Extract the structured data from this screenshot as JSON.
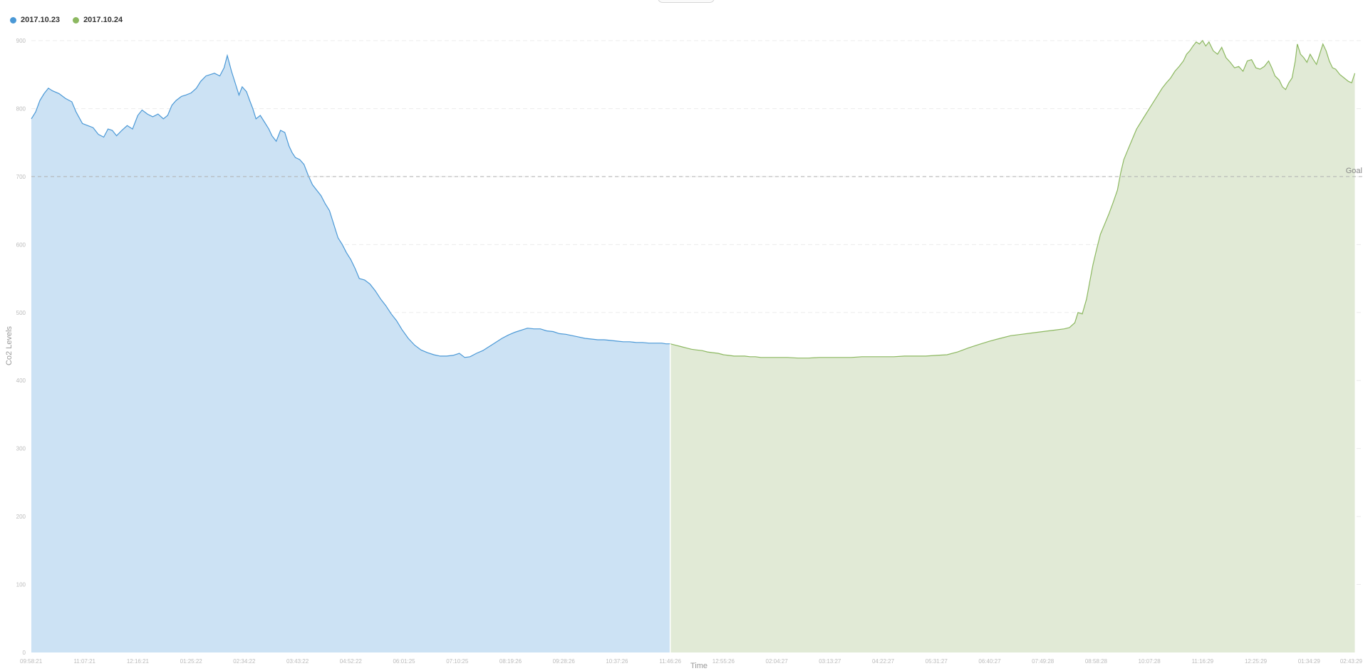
{
  "chart_data": {
    "type": "area",
    "title": "",
    "xlabel": "Time",
    "ylabel": "Co2 Levels",
    "ylim": [
      0,
      900
    ],
    "yticks": [
      0,
      100,
      200,
      300,
      400,
      500,
      600,
      700,
      800,
      900
    ],
    "xtick_labels": [
      "09:58:21",
      "11:07:21",
      "12:16:21",
      "01:25:22",
      "02:34:22",
      "03:43:22",
      "04:52:22",
      "06:01:25",
      "07:10:25",
      "08:19:26",
      "09:28:26",
      "10:37:26",
      "11:46:26",
      "12:55:26",
      "02:04:27",
      "03:13:27",
      "04:22:27",
      "05:31:27",
      "06:40:27",
      "07:49:28",
      "08:58:28",
      "10:07:28",
      "11:16:29",
      "12:25:29",
      "01:34:29",
      "02:43:29"
    ],
    "grid": true,
    "legend_position": "top-left",
    "goal": {
      "label": "Goal",
      "value": 700
    },
    "series": [
      {
        "name": "2017.10.23",
        "color": "#4a98d6",
        "fill": "#cce2f4",
        "x_start": 0,
        "x_end": 12,
        "points": [
          [
            0.0,
            785
          ],
          [
            0.08,
            795
          ],
          [
            0.16,
            812
          ],
          [
            0.24,
            822
          ],
          [
            0.32,
            830
          ],
          [
            0.4,
            826
          ],
          [
            0.52,
            822
          ],
          [
            0.64,
            815
          ],
          [
            0.76,
            810
          ],
          [
            0.84,
            795
          ],
          [
            0.96,
            778
          ],
          [
            1.06,
            775
          ],
          [
            1.16,
            772
          ],
          [
            1.26,
            762
          ],
          [
            1.36,
            758
          ],
          [
            1.44,
            770
          ],
          [
            1.52,
            768
          ],
          [
            1.6,
            760
          ],
          [
            1.7,
            768
          ],
          [
            1.8,
            775
          ],
          [
            1.9,
            770
          ],
          [
            2.0,
            790
          ],
          [
            2.08,
            798
          ],
          [
            2.18,
            792
          ],
          [
            2.28,
            788
          ],
          [
            2.38,
            792
          ],
          [
            2.48,
            785
          ],
          [
            2.56,
            790
          ],
          [
            2.64,
            805
          ],
          [
            2.72,
            812
          ],
          [
            2.82,
            818
          ],
          [
            2.9,
            820
          ],
          [
            3.0,
            823
          ],
          [
            3.1,
            830
          ],
          [
            3.18,
            840
          ],
          [
            3.28,
            848
          ],
          [
            3.36,
            850
          ],
          [
            3.44,
            852
          ],
          [
            3.54,
            848
          ],
          [
            3.62,
            860
          ],
          [
            3.68,
            878
          ],
          [
            3.76,
            855
          ],
          [
            3.84,
            835
          ],
          [
            3.9,
            820
          ],
          [
            3.96,
            832
          ],
          [
            4.04,
            825
          ],
          [
            4.1,
            812
          ],
          [
            4.16,
            800
          ],
          [
            4.22,
            785
          ],
          [
            4.3,
            790
          ],
          [
            4.38,
            780
          ],
          [
            4.46,
            770
          ],
          [
            4.52,
            760
          ],
          [
            4.6,
            752
          ],
          [
            4.68,
            768
          ],
          [
            4.76,
            765
          ],
          [
            4.84,
            745
          ],
          [
            4.9,
            735
          ],
          [
            4.96,
            728
          ],
          [
            5.04,
            725
          ],
          [
            5.12,
            718
          ],
          [
            5.2,
            702
          ],
          [
            5.28,
            688
          ],
          [
            5.36,
            680
          ],
          [
            5.44,
            672
          ],
          [
            5.52,
            660
          ],
          [
            5.6,
            650
          ],
          [
            5.68,
            630
          ],
          [
            5.76,
            610
          ],
          [
            5.84,
            600
          ],
          [
            5.92,
            588
          ],
          [
            6.0,
            578
          ],
          [
            6.08,
            565
          ],
          [
            6.16,
            550
          ],
          [
            6.26,
            548
          ],
          [
            6.36,
            542
          ],
          [
            6.46,
            532
          ],
          [
            6.56,
            520
          ],
          [
            6.66,
            510
          ],
          [
            6.76,
            498
          ],
          [
            6.86,
            488
          ],
          [
            6.96,
            475
          ],
          [
            7.08,
            462
          ],
          [
            7.2,
            452
          ],
          [
            7.32,
            445
          ],
          [
            7.44,
            441
          ],
          [
            7.56,
            438
          ],
          [
            7.68,
            436
          ],
          [
            7.8,
            436
          ],
          [
            7.92,
            437
          ],
          [
            8.04,
            440
          ],
          [
            8.14,
            434
          ],
          [
            8.24,
            435
          ],
          [
            8.36,
            440
          ],
          [
            8.48,
            444
          ],
          [
            8.6,
            450
          ],
          [
            8.72,
            456
          ],
          [
            8.84,
            462
          ],
          [
            8.96,
            467
          ],
          [
            9.08,
            471
          ],
          [
            9.2,
            474
          ],
          [
            9.32,
            477
          ],
          [
            9.44,
            476
          ],
          [
            9.56,
            476
          ],
          [
            9.68,
            473
          ],
          [
            9.8,
            472
          ],
          [
            9.92,
            469
          ],
          [
            10.04,
            468
          ],
          [
            10.16,
            466
          ],
          [
            10.28,
            464
          ],
          [
            10.4,
            462
          ],
          [
            10.52,
            461
          ],
          [
            10.64,
            460
          ],
          [
            10.76,
            460
          ],
          [
            10.88,
            459
          ],
          [
            11.0,
            458
          ],
          [
            11.12,
            457
          ],
          [
            11.24,
            457
          ],
          [
            11.36,
            456
          ],
          [
            11.48,
            456
          ],
          [
            11.6,
            455
          ],
          [
            11.72,
            455
          ],
          [
            11.84,
            455
          ],
          [
            11.92,
            454
          ],
          [
            12.0,
            454
          ]
        ]
      },
      {
        "name": "2017.10.24",
        "color": "#8cb860",
        "fill": "#e1ead6",
        "x_start": 12,
        "x_end": 25,
        "points": [
          [
            12.0,
            454
          ],
          [
            12.1,
            452
          ],
          [
            12.2,
            450
          ],
          [
            12.3,
            448
          ],
          [
            12.4,
            446
          ],
          [
            12.5,
            445
          ],
          [
            12.6,
            444
          ],
          [
            12.7,
            442
          ],
          [
            12.8,
            441
          ],
          [
            12.9,
            440
          ],
          [
            13.0,
            438
          ],
          [
            13.1,
            437
          ],
          [
            13.2,
            436
          ],
          [
            13.3,
            436
          ],
          [
            13.4,
            436
          ],
          [
            13.5,
            435
          ],
          [
            13.6,
            435
          ],
          [
            13.7,
            434
          ],
          [
            13.8,
            434
          ],
          [
            13.9,
            434
          ],
          [
            14.0,
            434
          ],
          [
            14.2,
            434
          ],
          [
            14.4,
            433
          ],
          [
            14.6,
            433
          ],
          [
            14.8,
            434
          ],
          [
            15.0,
            434
          ],
          [
            15.2,
            434
          ],
          [
            15.4,
            434
          ],
          [
            15.6,
            435
          ],
          [
            15.8,
            435
          ],
          [
            16.0,
            435
          ],
          [
            16.2,
            435
          ],
          [
            16.4,
            436
          ],
          [
            16.6,
            436
          ],
          [
            16.8,
            436
          ],
          [
            17.0,
            437
          ],
          [
            17.2,
            438
          ],
          [
            17.4,
            442
          ],
          [
            17.6,
            448
          ],
          [
            17.8,
            453
          ],
          [
            18.0,
            458
          ],
          [
            18.2,
            462
          ],
          [
            18.4,
            466
          ],
          [
            18.6,
            468
          ],
          [
            18.8,
            470
          ],
          [
            19.0,
            472
          ],
          [
            19.2,
            474
          ],
          [
            19.4,
            476
          ],
          [
            19.5,
            478
          ],
          [
            19.6,
            485
          ],
          [
            19.66,
            500
          ],
          [
            19.74,
            498
          ],
          [
            19.82,
            520
          ],
          [
            19.88,
            545
          ],
          [
            19.94,
            570
          ],
          [
            20.0,
            590
          ],
          [
            20.08,
            615
          ],
          [
            20.16,
            630
          ],
          [
            20.24,
            645
          ],
          [
            20.32,
            662
          ],
          [
            20.4,
            680
          ],
          [
            20.46,
            705
          ],
          [
            20.52,
            725
          ],
          [
            20.6,
            740
          ],
          [
            20.68,
            755
          ],
          [
            20.76,
            770
          ],
          [
            20.84,
            780
          ],
          [
            20.92,
            790
          ],
          [
            21.0,
            800
          ],
          [
            21.08,
            810
          ],
          [
            21.16,
            820
          ],
          [
            21.24,
            830
          ],
          [
            21.32,
            838
          ],
          [
            21.4,
            845
          ],
          [
            21.48,
            855
          ],
          [
            21.56,
            862
          ],
          [
            21.64,
            870
          ],
          [
            21.7,
            880
          ],
          [
            21.76,
            885
          ],
          [
            21.82,
            892
          ],
          [
            21.88,
            898
          ],
          [
            21.94,
            895
          ],
          [
            22.0,
            900
          ],
          [
            22.06,
            892
          ],
          [
            22.12,
            898
          ],
          [
            22.2,
            885
          ],
          [
            22.28,
            880
          ],
          [
            22.36,
            890
          ],
          [
            22.44,
            875
          ],
          [
            22.52,
            868
          ],
          [
            22.6,
            860
          ],
          [
            22.68,
            862
          ],
          [
            22.76,
            855
          ],
          [
            22.84,
            870
          ],
          [
            22.92,
            872
          ],
          [
            23.0,
            860
          ],
          [
            23.08,
            858
          ],
          [
            23.16,
            862
          ],
          [
            23.24,
            870
          ],
          [
            23.3,
            860
          ],
          [
            23.36,
            848
          ],
          [
            23.44,
            842
          ],
          [
            23.5,
            832
          ],
          [
            23.56,
            828
          ],
          [
            23.62,
            838
          ],
          [
            23.68,
            845
          ],
          [
            23.74,
            870
          ],
          [
            23.78,
            895
          ],
          [
            23.84,
            880
          ],
          [
            23.9,
            875
          ],
          [
            23.96,
            868
          ],
          [
            24.02,
            880
          ],
          [
            24.08,
            872
          ],
          [
            24.14,
            865
          ],
          [
            24.2,
            880
          ],
          [
            24.26,
            895
          ],
          [
            24.32,
            885
          ],
          [
            24.38,
            870
          ],
          [
            24.44,
            860
          ],
          [
            24.5,
            858
          ],
          [
            24.58,
            850
          ],
          [
            24.66,
            845
          ],
          [
            24.74,
            840
          ],
          [
            24.8,
            838
          ],
          [
            24.86,
            852
          ]
        ]
      }
    ]
  }
}
